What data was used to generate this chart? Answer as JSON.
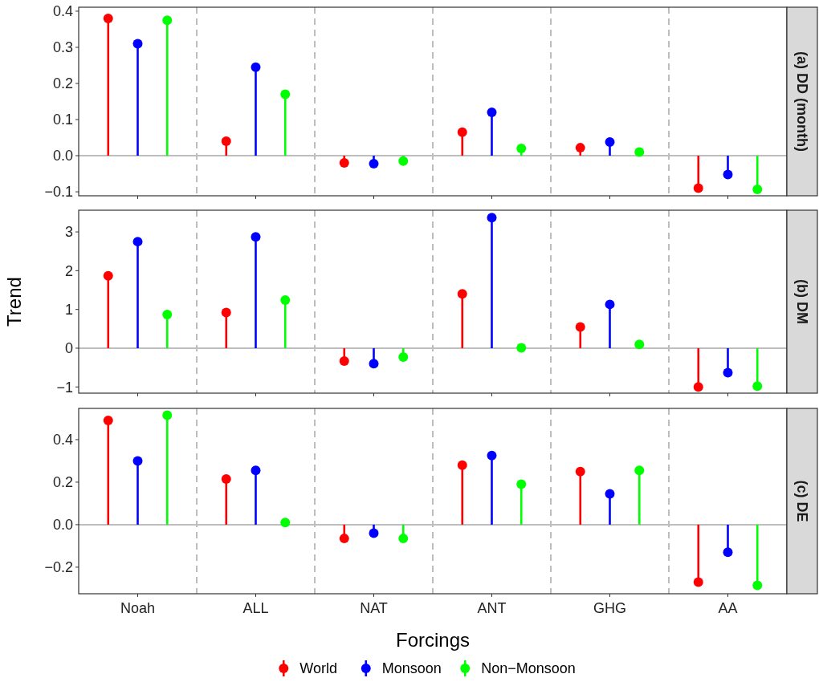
{
  "chart_data": [
    {
      "type": "lollipop",
      "title": "(a) DD (month)",
      "categories": [
        null,
        null,
        null,
        null,
        null,
        null
      ],
      "ylim": [
        -0.111,
        0.411
      ],
      "yticks": [
        {
          "value": -0.1,
          "label": "−0.1"
        },
        {
          "value": 0,
          "label": "0.0"
        },
        {
          "value": 0.1,
          "label": "0.1"
        },
        {
          "value": 0.2,
          "label": "0.2"
        },
        {
          "value": 0.3,
          "label": "0.3"
        },
        {
          "value": 0.4,
          "label": "0.4"
        }
      ],
      "tick_labels": "y",
      "grid": false,
      "marker": "circle",
      "ref_lines": [
        {
          "axis": "y",
          "value": 0,
          "color": "#bebebe"
        }
      ],
      "series": [
        {
          "color": "#ff0000",
          "values": [
            0.38,
            0.04,
            -0.02,
            0.065,
            0.022,
            -0.09
          ]
        },
        {
          "color": "#0000ff",
          "values": [
            0.31,
            0.245,
            -0.022,
            0.12,
            0.038,
            -0.052
          ]
        },
        {
          "color": "#00ff00",
          "values": [
            0.375,
            0.17,
            -0.015,
            0.02,
            0.01,
            -0.093
          ]
        }
      ]
    },
    {
      "type": "lollipop",
      "title": "(b) DM",
      "ylabel": "Trend",
      "categories": [
        null,
        null,
        null,
        null,
        null,
        null
      ],
      "ylim": [
        -1.16,
        3.56
      ],
      "yticks": [
        {
          "value": -1,
          "label": "−1"
        },
        0,
        1,
        2,
        3
      ],
      "tick_labels": "y",
      "grid": false,
      "marker": "circle",
      "ref_lines": [
        {
          "axis": "y",
          "value": 0,
          "color": "#bebebe"
        }
      ],
      "series": [
        {
          "color": "#ff0000",
          "values": [
            1.87,
            0.92,
            -0.33,
            1.4,
            0.55,
            -1.0
          ]
        },
        {
          "color": "#0000ff",
          "values": [
            2.75,
            2.87,
            -0.4,
            3.37,
            1.13,
            -0.63
          ]
        },
        {
          "color": "#00ff00",
          "values": [
            0.87,
            1.24,
            -0.23,
            0.01,
            0.1,
            -0.98
          ]
        }
      ]
    },
    {
      "type": "lollipop",
      "title": "(c) DE",
      "xlabel": "Forcings",
      "categories": [
        "Noah",
        "ALL",
        "NAT",
        "ANT",
        "GHG",
        "AA"
      ],
      "ylim": [
        -0.325,
        0.547
      ],
      "yticks": [
        {
          "value": -0.2,
          "label": "−0.2"
        },
        {
          "value": 0,
          "label": "0.0"
        },
        {
          "value": 0.2,
          "label": "0.2"
        },
        {
          "value": 0.4,
          "label": "0.4"
        }
      ],
      "grid": false,
      "marker": "circle",
      "legend": "bottom",
      "ref_lines": [
        {
          "axis": "y",
          "value": 0,
          "color": "#bebebe"
        }
      ],
      "series": [
        {
          "name": "World",
          "color": "#ff0000",
          "values": [
            0.49,
            0.215,
            -0.065,
            0.28,
            0.25,
            -0.27
          ]
        },
        {
          "name": "Monsoon",
          "color": "#0000ff",
          "values": [
            0.3,
            0.255,
            -0.04,
            0.325,
            0.145,
            -0.13
          ]
        },
        {
          "name": "Non−Monsoon",
          "color": "#00ff00",
          "values": [
            0.515,
            0.01,
            -0.065,
            0.19,
            0.255,
            -0.285
          ]
        }
      ]
    }
  ]
}
